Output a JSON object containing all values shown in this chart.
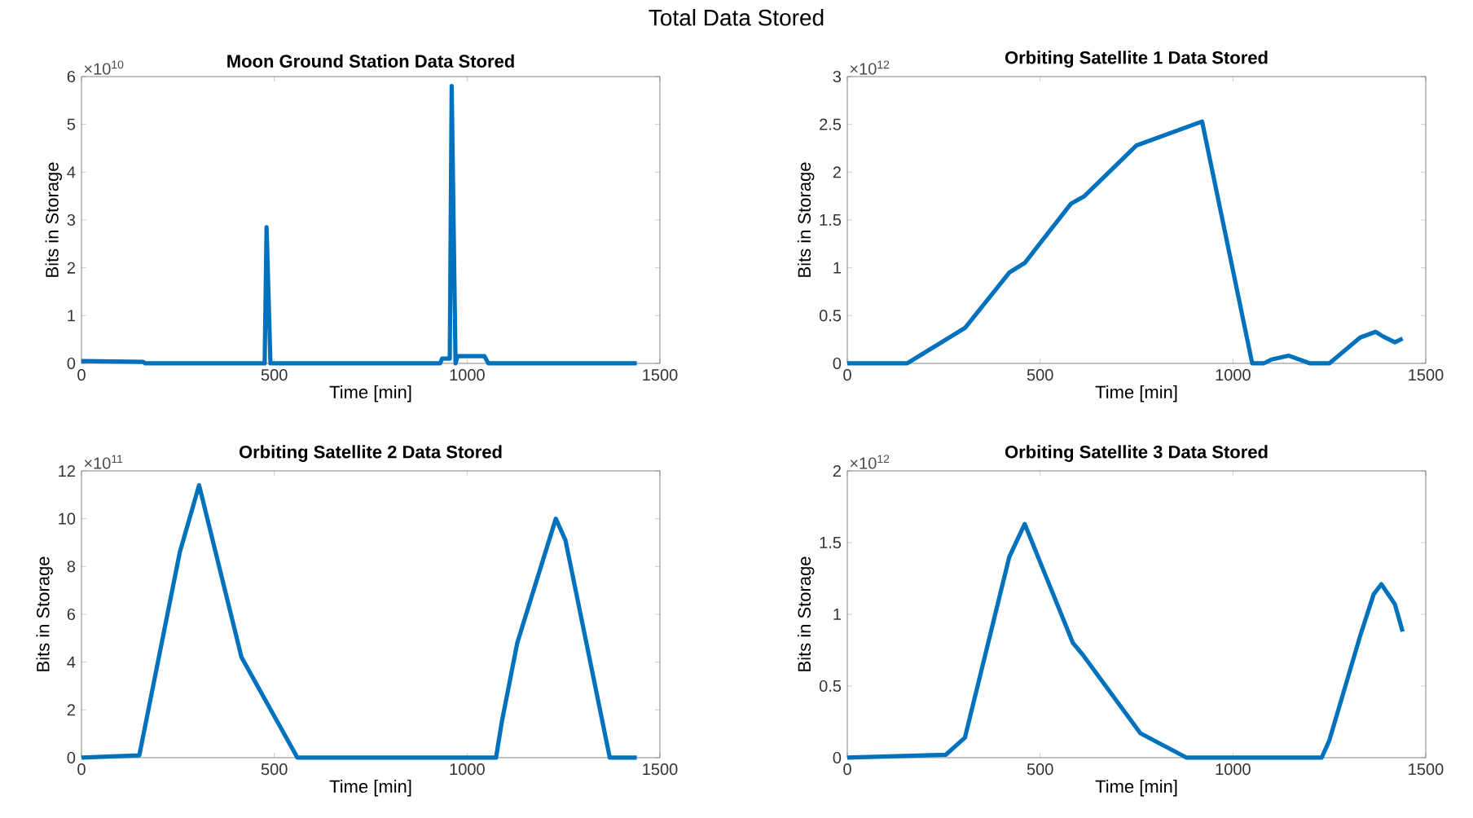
{
  "chart_data": [
    {
      "type": "line",
      "title": "Moon Ground Station Data Stored",
      "xlabel": "Time [min]",
      "ylabel": "Bits in Storage",
      "annotations": [
        "×10$^{10}$",
        "Total Data Stored"
      ],
      "x": [
        0,
        160,
        165,
        475,
        480,
        490,
        930,
        935,
        955,
        960,
        970,
        975,
        1045,
        1055,
        1440
      ],
      "series": [
        {
          "color": "#0072bd",
          "values": [
            0.05,
            0.03,
            0,
            0,
            2.85,
            0,
            0,
            0.1,
            0.1,
            5.8,
            0,
            0.15,
            0.15,
            0,
            0
          ]
        }
      ],
      "xlim": [
        0,
        1500
      ],
      "xticks": [
        0,
        500,
        1000,
        1500
      ],
      "ylim": [
        0,
        6
      ],
      "yticks": [
        0,
        1,
        2,
        3,
        4,
        5,
        6
      ]
    },
    {
      "type": "line",
      "title": "Orbiting Satellite 1 Data Stored",
      "xlabel": "Time [min]",
      "ylabel": "Bits in Storage",
      "annotations": [
        "×10$^{12}$"
      ],
      "x": [
        0,
        155,
        305,
        420,
        460,
        580,
        615,
        750,
        920,
        1050,
        1080,
        1100,
        1145,
        1200,
        1250,
        1330,
        1370,
        1390,
        1420,
        1440
      ],
      "series": [
        {
          "color": "#0072bd",
          "values": [
            0,
            0,
            0.37,
            0.95,
            1.05,
            1.67,
            1.75,
            2.28,
            2.53,
            0,
            0,
            0.04,
            0.08,
            0,
            0,
            0.27,
            0.33,
            0.28,
            0.22,
            0.26
          ]
        }
      ],
      "xlim": [
        0,
        1500
      ],
      "xticks": [
        0,
        500,
        1000,
        1500
      ],
      "ylim": [
        0,
        3
      ],
      "yticks": [
        0,
        0.5,
        1,
        1.5,
        2,
        2.5,
        3
      ]
    },
    {
      "type": "line",
      "title": "Orbiting Satellite 2 Data Stored",
      "xlabel": "Time [min]",
      "ylabel": "Bits in Storage",
      "annotations": [
        "×10$^{11}$"
      ],
      "x": [
        0,
        150,
        255,
        305,
        415,
        560,
        1075,
        1090,
        1130,
        1230,
        1255,
        1370,
        1440
      ],
      "series": [
        {
          "color": "#0072bd",
          "values": [
            0,
            0.1,
            8.6,
            11.4,
            4.2,
            0,
            0,
            1.5,
            4.8,
            10,
            9.1,
            0,
            0
          ]
        }
      ],
      "xlim": [
        0,
        1500
      ],
      "xticks": [
        0,
        500,
        1000,
        1500
      ],
      "ylim": [
        0,
        12
      ],
      "yticks": [
        0,
        2,
        4,
        6,
        8,
        10,
        12
      ]
    },
    {
      "type": "line",
      "title": "Orbiting Satellite 3 Data Stored",
      "xlabel": "Time [min]",
      "ylabel": "Bits in Storage",
      "annotations": [
        "×10$^{12}$"
      ],
      "x": [
        0,
        255,
        305,
        420,
        460,
        585,
        610,
        760,
        880,
        1230,
        1250,
        1330,
        1365,
        1385,
        1420,
        1440
      ],
      "series": [
        {
          "color": "#0072bd",
          "values": [
            0,
            0.02,
            0.14,
            1.4,
            1.63,
            0.8,
            0.72,
            0.17,
            0,
            0,
            0.12,
            0.85,
            1.14,
            1.21,
            1.07,
            0.88
          ]
        }
      ],
      "xlim": [
        0,
        1500
      ],
      "xticks": [
        0,
        500,
        1000,
        1500
      ],
      "ylim": [
        0,
        2
      ],
      "yticks": [
        0,
        0.5,
        1,
        1.5,
        2
      ]
    }
  ]
}
